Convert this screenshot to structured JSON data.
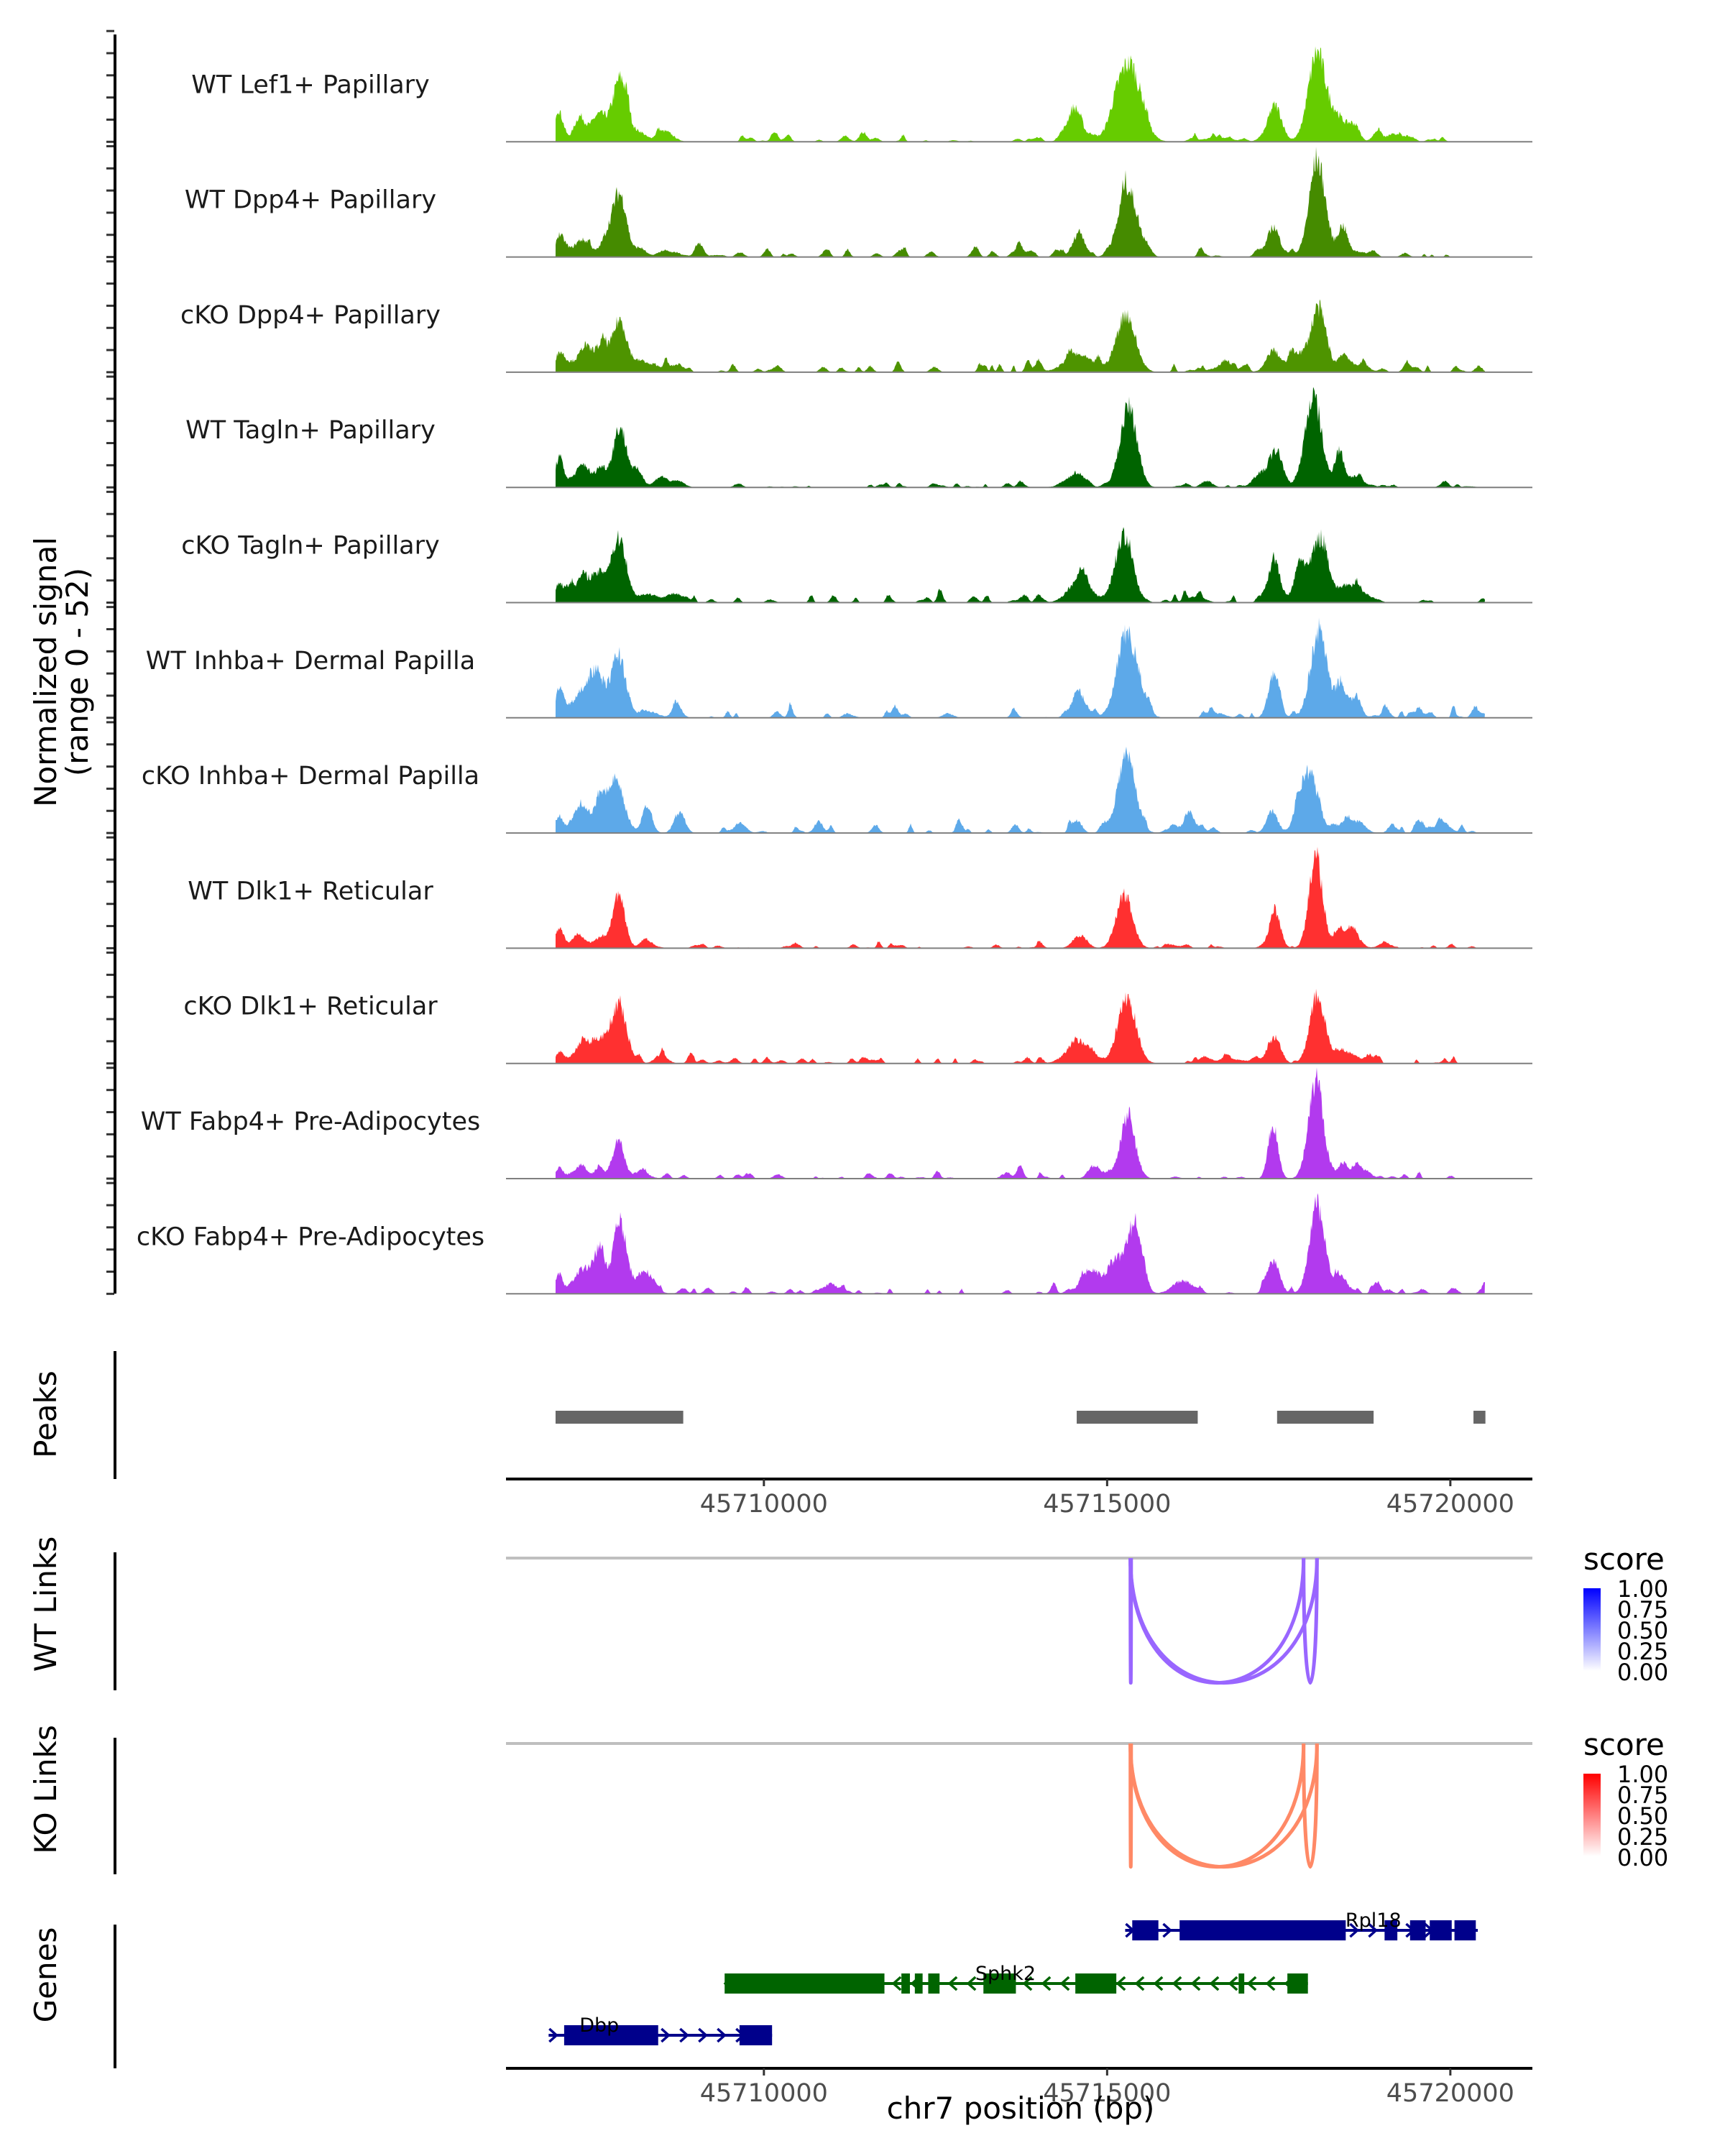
{
  "chart_data": {
    "type": "area",
    "title": "",
    "region": {
      "chromosome": "chr7",
      "start": 45706243,
      "end": 45721195
    },
    "xlabel": "chr7 position (bp)",
    "ylabel": "Normalized signal",
    "ylabel_sub": "(range 0 - 52)",
    "ylim": [
      0,
      52
    ],
    "x_ticks": [
      45710000,
      45715000,
      45720000
    ],
    "x_tick_labels": [
      "45710000",
      "45715000",
      "45720000"
    ],
    "data_start": 45706965,
    "data_end": 45720500,
    "coverage_tracks": [
      {
        "name": "WT Lef1+ Papillary",
        "color": "#66CC00",
        "peaks": [
          [
            45707020,
            13,
            60
          ],
          [
            45707320,
            11,
            90
          ],
          [
            45707580,
            12,
            90
          ],
          [
            45707900,
            29,
            110
          ],
          [
            45708200,
            4,
            80
          ],
          [
            45708550,
            5,
            120
          ],
          [
            45714520,
            14,
            110
          ],
          [
            45715300,
            36,
            180
          ],
          [
            45716600,
            2,
            200
          ],
          [
            45717440,
            17,
            100
          ],
          [
            45718060,
            41,
            130
          ],
          [
            45718350,
            10,
            90
          ],
          [
            45718560,
            8,
            90
          ],
          [
            45719150,
            3,
            90
          ]
        ],
        "noise": 1.2
      },
      {
        "name": "WT Dpp4+ Papillary",
        "color": "#458B00",
        "peaks": [
          [
            45707020,
            10,
            60
          ],
          [
            45707350,
            8,
            120
          ],
          [
            45707700,
            8,
            80
          ],
          [
            45707900,
            27,
            100
          ],
          [
            45708200,
            4,
            80
          ],
          [
            45708550,
            3,
            100
          ],
          [
            45714590,
            12,
            80
          ],
          [
            45715300,
            31,
            140
          ],
          [
            45717420,
            14,
            90
          ],
          [
            45718060,
            43,
            120
          ],
          [
            45718440,
            11,
            70
          ],
          [
            45718700,
            2,
            100
          ]
        ],
        "noise": 1.4
      },
      {
        "name": "cKO Dpp4+ Papillary",
        "color": "#4E9400",
        "peaks": [
          [
            45707020,
            9,
            60
          ],
          [
            45707400,
            10,
            140
          ],
          [
            45707650,
            10,
            90
          ],
          [
            45707900,
            24,
            100
          ],
          [
            45708200,
            5,
            120
          ],
          [
            45708600,
            3,
            150
          ],
          [
            45714580,
            8,
            200
          ],
          [
            45715270,
            26,
            140
          ],
          [
            45716700,
            2,
            200
          ],
          [
            45717420,
            10,
            100
          ],
          [
            45717750,
            9,
            100
          ],
          [
            45718070,
            30,
            110
          ],
          [
            45718450,
            8,
            90
          ],
          [
            45718720,
            4,
            90
          ]
        ],
        "noise": 1.8
      },
      {
        "name": "WT Tagln+ Papillary",
        "color": "#006400",
        "peaks": [
          [
            45707020,
            14,
            60
          ],
          [
            45707350,
            10,
            100
          ],
          [
            45707620,
            9,
            80
          ],
          [
            45707900,
            28,
            100
          ],
          [
            45708150,
            6,
            80
          ],
          [
            45708500,
            5,
            90
          ],
          [
            45708750,
            3,
            90
          ],
          [
            45714550,
            7,
            110
          ],
          [
            45715310,
            37,
            120
          ],
          [
            45716450,
            3,
            80
          ],
          [
            45717250,
            6,
            120
          ],
          [
            45717470,
            16,
            90
          ],
          [
            45718000,
            42,
            120
          ],
          [
            45718380,
            17,
            70
          ],
          [
            45718600,
            5,
            80
          ]
        ],
        "noise": 0.9
      },
      {
        "name": "cKO Tagln+ Papillary",
        "color": "#006400",
        "peaks": [
          [
            45707020,
            9,
            60
          ],
          [
            45707400,
            10,
            160
          ],
          [
            45707650,
            9,
            120
          ],
          [
            45707900,
            27,
            100
          ],
          [
            45708300,
            4,
            150
          ],
          [
            45708700,
            4,
            120
          ],
          [
            45714600,
            11,
            160
          ],
          [
            45715240,
            30,
            130
          ],
          [
            45716300,
            3,
            120
          ],
          [
            45717430,
            17,
            90
          ],
          [
            45717830,
            17,
            100
          ],
          [
            45718120,
            29,
            110
          ],
          [
            45718470,
            8,
            100
          ],
          [
            45718750,
            4,
            100
          ]
        ],
        "noise": 1.6
      },
      {
        "name": "WT Inhba+ Dermal Papilla",
        "color": "#5DA9E9",
        "peaks": [
          [
            45707020,
            12,
            60
          ],
          [
            45707400,
            14,
            150
          ],
          [
            45707600,
            14,
            90
          ],
          [
            45707880,
            29,
            100
          ],
          [
            45708300,
            3,
            150
          ],
          [
            45708740,
            5,
            70
          ],
          [
            45712680,
            2,
            80
          ],
          [
            45714590,
            10,
            110
          ],
          [
            45715300,
            37,
            150
          ],
          [
            45716630,
            2,
            100
          ],
          [
            45717420,
            19,
            80
          ],
          [
            45718080,
            40,
            120
          ],
          [
            45718400,
            16,
            70
          ],
          [
            45718630,
            10,
            70
          ],
          [
            45719550,
            2,
            100
          ]
        ],
        "noise": 1.6
      },
      {
        "name": "cKO Inhba+ Dermal Papilla",
        "color": "#5DA9E9",
        "peaks": [
          [
            45707020,
            8,
            60
          ],
          [
            45707350,
            14,
            100
          ],
          [
            45707620,
            11,
            70
          ],
          [
            45707850,
            22,
            120
          ],
          [
            45708300,
            13,
            70
          ],
          [
            45708770,
            8,
            80
          ],
          [
            45710800,
            5,
            60
          ],
          [
            45714560,
            6,
            70
          ],
          [
            45715280,
            36,
            130
          ],
          [
            45716150,
            4,
            100
          ],
          [
            45717400,
            10,
            80
          ],
          [
            45717930,
            29,
            130
          ],
          [
            45718520,
            6,
            150
          ],
          [
            45719950,
            3,
            80
          ]
        ],
        "noise": 1.9
      },
      {
        "name": "WT Dlk1+ Reticular",
        "color": "#FF3030",
        "peaks": [
          [
            45707020,
            9,
            60
          ],
          [
            45707300,
            6,
            100
          ],
          [
            45707620,
            5,
            90
          ],
          [
            45707880,
            24,
            90
          ],
          [
            45708300,
            3,
            100
          ],
          [
            45714600,
            6,
            100
          ],
          [
            45715250,
            23,
            120
          ],
          [
            45717440,
            17,
            80
          ],
          [
            45718040,
            41,
            100
          ],
          [
            45718380,
            9,
            60
          ],
          [
            45718560,
            10,
            70
          ],
          [
            45719020,
            2,
            80
          ]
        ],
        "noise": 0.8
      },
      {
        "name": "cKO Dlk1+ Reticular",
        "color": "#FF3030",
        "peaks": [
          [
            45707020,
            5,
            60
          ],
          [
            45707400,
            10,
            150
          ],
          [
            45707700,
            9,
            100
          ],
          [
            45707900,
            24,
            110
          ],
          [
            45708500,
            4,
            90
          ],
          [
            45714600,
            10,
            180
          ],
          [
            45715290,
            30,
            130
          ],
          [
            45716800,
            2,
            200
          ],
          [
            45717420,
            10,
            90
          ],
          [
            45718060,
            31,
            110
          ],
          [
            45718500,
            5,
            150
          ]
        ],
        "noise": 1.4
      },
      {
        "name": "WT Fabp4+ Pre-Adipocytes",
        "color": "#B23AEE",
        "peaks": [
          [
            45707020,
            5,
            60
          ],
          [
            45707330,
            6,
            100
          ],
          [
            45707600,
            5,
            60
          ],
          [
            45707880,
            17,
            80
          ],
          [
            45708200,
            3,
            120
          ],
          [
            45714800,
            6,
            80
          ],
          [
            45715300,
            28,
            110
          ],
          [
            45717420,
            24,
            70
          ],
          [
            45718040,
            44,
            110
          ],
          [
            45718430,
            7,
            70
          ],
          [
            45718640,
            6,
            80
          ]
        ],
        "noise": 1.1
      },
      {
        "name": "cKO Fabp4+ Pre-Adipocytes",
        "color": "#B23AEE",
        "peaks": [
          [
            45707020,
            8,
            50
          ],
          [
            45707400,
            12,
            160
          ],
          [
            45707620,
            13,
            70
          ],
          [
            45707900,
            33,
            100
          ],
          [
            45708280,
            10,
            120
          ],
          [
            45710960,
            4,
            130
          ],
          [
            45714760,
            10,
            140
          ],
          [
            45715200,
            17,
            160
          ],
          [
            45715420,
            27,
            90
          ],
          [
            45716100,
            6,
            150
          ],
          [
            45717420,
            15,
            90
          ],
          [
            45718050,
            38,
            110
          ],
          [
            45718400,
            5,
            130
          ]
        ],
        "noise": 1.5
      }
    ],
    "peaks_track": {
      "label": "Peaks",
      "color": "#666666",
      "regions": [
        [
          45706965,
          45708825
        ],
        [
          45714557,
          45716320
        ],
        [
          45717476,
          45718882
        ],
        [
          45720337,
          45720511
        ]
      ]
    },
    "links_tracks": [
      {
        "label": "WT Links",
        "color": "#9966FF",
        "legend_title": "score",
        "legend_colors": [
          "#FFFFFF",
          "#0000FF"
        ],
        "links": [
          [
            45715339,
            45715350,
            0.62
          ],
          [
            45715339,
            45717862,
            0.62
          ],
          [
            45715339,
            45718057,
            0.62
          ],
          [
            45717862,
            45718057,
            0.62
          ]
        ]
      },
      {
        "label": "KO Links",
        "color": "#FF8966",
        "legend_title": "score",
        "legend_colors": [
          "#FFFFFF",
          "#FF0000"
        ],
        "links": [
          [
            45715339,
            45715350,
            0.62
          ],
          [
            45715339,
            45717862,
            0.62
          ],
          [
            45715339,
            45718057,
            0.62
          ],
          [
            45717862,
            45718057,
            0.62
          ]
        ]
      }
    ],
    "legend_ticks": [
      "1.00",
      "0.75",
      "0.50",
      "0.25",
      "0.00"
    ],
    "genes_track": {
      "label": "Genes",
      "genes": [
        {
          "name": "Rpl18",
          "strand": "+",
          "color": "#00008B",
          "row": 0,
          "start": 45715263,
          "end": 45720400,
          "exons": [
            [
              45715366,
              45715747
            ],
            [
              45716056,
              45718476
            ],
            [
              45719042,
              45719228
            ],
            [
              45719413,
              45719640
            ],
            [
              45719700,
              45720020
            ],
            [
              45720060,
              45720371
            ]
          ]
        },
        {
          "name": "Sphk2",
          "strand": "-",
          "color": "#006400",
          "row": 1,
          "start": 45709428,
          "end": 45717925,
          "exons": [
            [
              45709428,
              45711756
            ],
            [
              45712003,
              45712127
            ],
            [
              45712199,
              45712312
            ],
            [
              45712394,
              45712559
            ],
            [
              45713198,
              45713671
            ],
            [
              45714537,
              45715134
            ],
            [
              45716916,
              45716998
            ],
            [
              45717626,
              45717925
            ]
          ]
        },
        {
          "name": "Dbp",
          "strand": "+",
          "color": "#00008B",
          "row": 2,
          "start": 45706864,
          "end": 45710119,
          "exons": [
            [
              45707090,
              45708460
            ],
            [
              45709645,
              45710119
            ]
          ]
        }
      ]
    }
  }
}
